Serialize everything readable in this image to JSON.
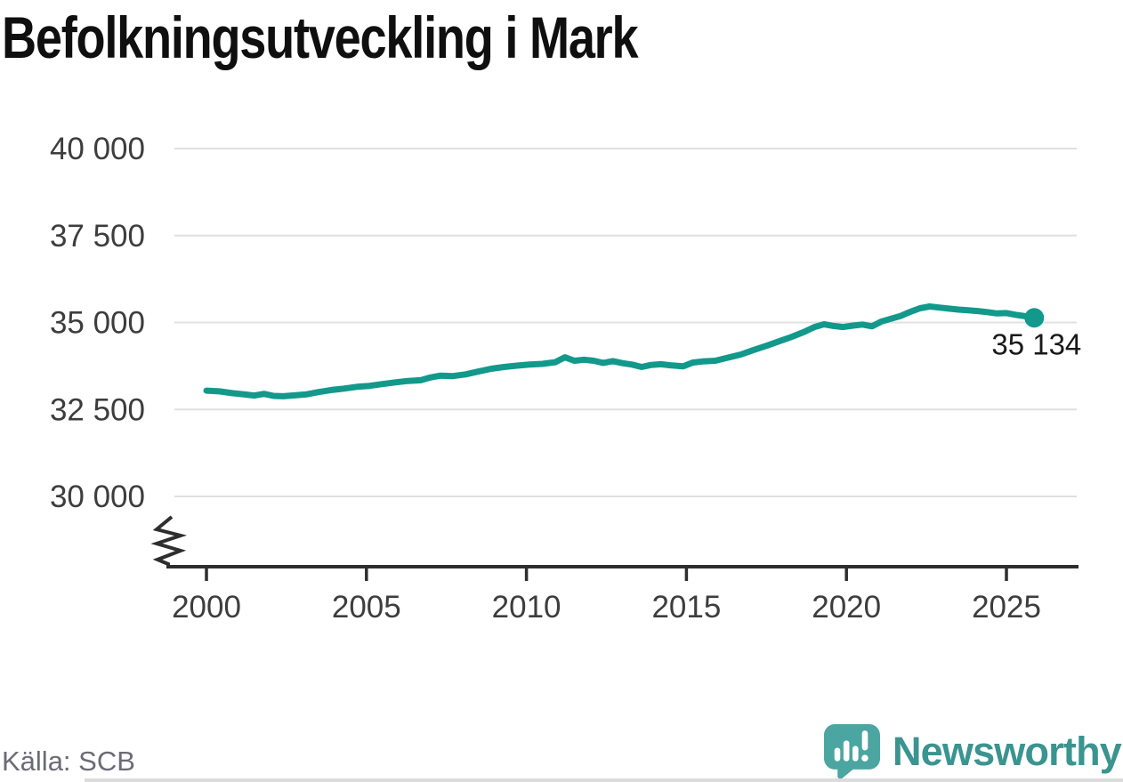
{
  "title": "Befolkningsutveckling i Mark",
  "source": "Källa: SCB",
  "brand": {
    "name": "Newsworthy",
    "icon_color": "#4BA5A0",
    "text_color": "#3A948F"
  },
  "chart_data": {
    "type": "line",
    "title": "Befolkningsutveckling i Mark",
    "xlabel": "",
    "ylabel": "",
    "grid": true,
    "axis_break": true,
    "ylim": [
      30000,
      40000
    ],
    "xlim": [
      1999,
      2027.2
    ],
    "line_color": "#12998B",
    "grid_color": "#E0E0E0",
    "axis_color": "#2E2E2E",
    "tick_label_color": "#3D3D3D",
    "end_label": "35 134",
    "end_value": 35134,
    "y_ticks": [
      {
        "value": 40000,
        "label": "40 000"
      },
      {
        "value": 37500,
        "label": "37 500"
      },
      {
        "value": 35000,
        "label": "35 000"
      },
      {
        "value": 32500,
        "label": "32 500"
      },
      {
        "value": 30000,
        "label": "30 000"
      }
    ],
    "x_ticks": [
      {
        "value": 2000,
        "label": "2000"
      },
      {
        "value": 2005,
        "label": "2005"
      },
      {
        "value": 2010,
        "label": "2010"
      },
      {
        "value": 2015,
        "label": "2015"
      },
      {
        "value": 2020,
        "label": "2020"
      },
      {
        "value": 2025,
        "label": "2025"
      }
    ],
    "series": [
      {
        "name": "Befolkning i Mark",
        "color": "#12998B",
        "points": [
          [
            2000.0,
            33040
          ],
          [
            2000.4,
            33020
          ],
          [
            2000.8,
            32970
          ],
          [
            2001.2,
            32930
          ],
          [
            2001.5,
            32900
          ],
          [
            2001.8,
            32950
          ],
          [
            2002.1,
            32890
          ],
          [
            2002.4,
            32880
          ],
          [
            2002.8,
            32910
          ],
          [
            2003.1,
            32930
          ],
          [
            2003.5,
            33000
          ],
          [
            2003.9,
            33060
          ],
          [
            2004.3,
            33100
          ],
          [
            2004.7,
            33150
          ],
          [
            2005.1,
            33180
          ],
          [
            2005.5,
            33230
          ],
          [
            2005.9,
            33280
          ],
          [
            2006.3,
            33320
          ],
          [
            2006.7,
            33340
          ],
          [
            2007.0,
            33420
          ],
          [
            2007.3,
            33470
          ],
          [
            2007.7,
            33460
          ],
          [
            2008.1,
            33510
          ],
          [
            2008.5,
            33590
          ],
          [
            2008.9,
            33670
          ],
          [
            2009.3,
            33720
          ],
          [
            2009.7,
            33760
          ],
          [
            2010.1,
            33790
          ],
          [
            2010.5,
            33810
          ],
          [
            2010.9,
            33860
          ],
          [
            2011.2,
            34000
          ],
          [
            2011.5,
            33900
          ],
          [
            2011.8,
            33930
          ],
          [
            2012.1,
            33900
          ],
          [
            2012.4,
            33840
          ],
          [
            2012.7,
            33890
          ],
          [
            2013.0,
            33830
          ],
          [
            2013.3,
            33790
          ],
          [
            2013.6,
            33720
          ],
          [
            2013.9,
            33780
          ],
          [
            2014.2,
            33800
          ],
          [
            2014.5,
            33770
          ],
          [
            2014.9,
            33740
          ],
          [
            2015.2,
            33850
          ],
          [
            2015.5,
            33880
          ],
          [
            2015.9,
            33900
          ],
          [
            2016.3,
            33990
          ],
          [
            2016.7,
            34080
          ],
          [
            2017.1,
            34210
          ],
          [
            2017.5,
            34330
          ],
          [
            2017.9,
            34460
          ],
          [
            2018.3,
            34590
          ],
          [
            2018.7,
            34740
          ],
          [
            2019.0,
            34870
          ],
          [
            2019.3,
            34950
          ],
          [
            2019.6,
            34900
          ],
          [
            2019.9,
            34870
          ],
          [
            2020.2,
            34910
          ],
          [
            2020.5,
            34940
          ],
          [
            2020.8,
            34890
          ],
          [
            2021.1,
            35030
          ],
          [
            2021.4,
            35110
          ],
          [
            2021.7,
            35190
          ],
          [
            2022.0,
            35310
          ],
          [
            2022.3,
            35410
          ],
          [
            2022.6,
            35460
          ],
          [
            2022.9,
            35430
          ],
          [
            2023.2,
            35400
          ],
          [
            2023.5,
            35370
          ],
          [
            2023.8,
            35350
          ],
          [
            2024.1,
            35330
          ],
          [
            2024.4,
            35300
          ],
          [
            2024.7,
            35260
          ],
          [
            2025.0,
            35270
          ],
          [
            2025.3,
            35220
          ],
          [
            2025.6,
            35180
          ],
          [
            2025.87,
            35134
          ]
        ]
      }
    ]
  }
}
